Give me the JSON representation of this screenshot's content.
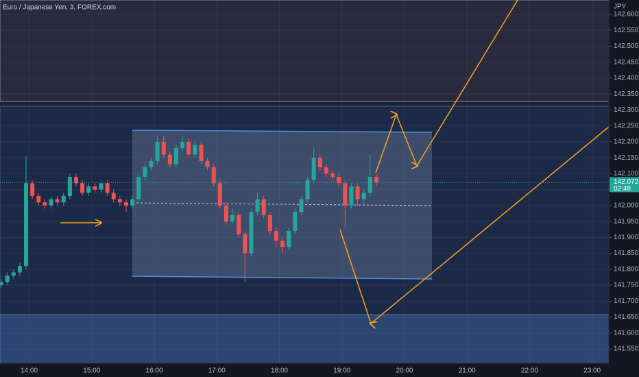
{
  "chart_data": {
    "type": "candlestick",
    "title": "Euro / Japanese Yen, 3, FOREX.com",
    "y_label": "JPY",
    "x": [
      "13:33",
      "13:39",
      "13:45",
      "13:51",
      "13:57",
      "14:03",
      "14:09",
      "14:15",
      "14:21",
      "14:27",
      "14:33",
      "14:39",
      "14:45",
      "14:51",
      "14:57",
      "15:03",
      "15:09",
      "15:15",
      "15:21",
      "15:27",
      "15:33",
      "15:39",
      "15:45",
      "15:51",
      "15:57",
      "16:03",
      "16:09",
      "16:15",
      "16:21",
      "16:27",
      "16:33",
      "16:39",
      "16:45",
      "16:51",
      "16:57",
      "17:03",
      "17:09",
      "17:15",
      "17:21",
      "17:27",
      "17:33",
      "17:39",
      "17:45",
      "17:51",
      "17:57",
      "18:03",
      "18:09",
      "18:15",
      "18:21",
      "18:27",
      "18:33",
      "18:39",
      "18:45",
      "18:51",
      "18:57",
      "19:03",
      "19:09",
      "19:15",
      "19:21",
      "19:27",
      "19:33"
    ],
    "open": [
      141.75,
      141.76,
      141.78,
      141.79,
      141.81,
      142.07,
      142.03,
      142.01,
      142.0,
      142.02,
      142.01,
      142.03,
      142.09,
      142.07,
      142.04,
      142.06,
      142.05,
      142.07,
      142.04,
      142.02,
      142.01,
      142.0,
      142.02,
      142.09,
      142.12,
      142.14,
      142.2,
      142.16,
      142.13,
      142.18,
      142.2,
      142.16,
      142.19,
      142.14,
      142.12,
      142.07,
      142.0,
      141.95,
      141.97,
      141.91,
      141.85,
      141.98,
      142.02,
      141.97,
      141.92,
      141.89,
      141.87,
      141.92,
      141.98,
      142.02,
      142.08,
      142.15,
      142.12,
      142.1,
      142.09,
      142.07,
      142.0,
      142.06,
      142.02,
      142.04,
      142.09
    ],
    "high": [
      141.77,
      141.79,
      141.8,
      141.82,
      142.155,
      142.08,
      142.04,
      142.02,
      142.03,
      142.03,
      142.04,
      142.1,
      142.1,
      142.08,
      142.07,
      142.07,
      142.08,
      142.08,
      142.05,
      142.03,
      142.02,
      142.03,
      142.1,
      142.13,
      142.15,
      142.22,
      142.22,
      142.17,
      142.19,
      142.22,
      142.21,
      142.2,
      142.2,
      142.15,
      142.13,
      142.08,
      142.01,
      141.99,
      141.98,
      141.92,
      141.99,
      142.04,
      142.03,
      141.98,
      141.93,
      141.9,
      141.93,
      141.99,
      142.03,
      142.09,
      142.18,
      142.16,
      142.13,
      142.11,
      142.1,
      142.08,
      142.07,
      142.07,
      142.05,
      142.16,
      142.1
    ],
    "low": [
      141.74,
      141.75,
      141.77,
      141.78,
      141.8,
      142.02,
      142.0,
      141.99,
      141.99,
      142.0,
      142.0,
      142.02,
      142.06,
      142.03,
      142.03,
      142.04,
      142.04,
      142.03,
      142.01,
      142.0,
      141.98,
      141.99,
      142.01,
      142.08,
      142.11,
      142.13,
      142.15,
      142.12,
      142.12,
      142.17,
      142.15,
      142.15,
      142.13,
      142.11,
      142.06,
      141.99,
      141.94,
      141.94,
      141.9,
      141.76,
      141.84,
      141.97,
      141.96,
      141.91,
      141.87,
      141.85,
      141.86,
      141.91,
      141.97,
      142.01,
      142.07,
      142.11,
      142.09,
      142.08,
      142.06,
      141.93,
      141.99,
      142.0,
      142.0,
      142.03,
      142.06
    ],
    "close": [
      141.76,
      141.78,
      141.79,
      141.81,
      142.07,
      142.03,
      142.01,
      142.0,
      142.02,
      142.01,
      142.03,
      142.09,
      142.07,
      142.04,
      142.06,
      142.05,
      142.07,
      142.04,
      142.02,
      142.01,
      142.0,
      142.02,
      142.09,
      142.12,
      142.14,
      142.2,
      142.16,
      142.13,
      142.18,
      142.2,
      142.16,
      142.19,
      142.14,
      142.12,
      142.07,
      142.0,
      141.95,
      141.97,
      141.91,
      141.85,
      141.98,
      142.02,
      141.97,
      141.92,
      141.89,
      141.87,
      141.92,
      141.98,
      142.02,
      142.08,
      142.15,
      142.12,
      142.1,
      142.09,
      142.07,
      142.0,
      142.06,
      142.02,
      142.04,
      142.09,
      142.072
    ],
    "up_color": "#26a69a",
    "down_color": "#ef5350",
    "last_price": 142.072,
    "countdown": "02:48",
    "xlim": [
      "13:32",
      "23:16"
    ],
    "xticks": [
      "14:00",
      "15:00",
      "16:00",
      "17:00",
      "18:00",
      "19:00",
      "20:00",
      "21:00",
      "22:00",
      "23:00"
    ],
    "ylim": [
      141.505,
      142.645
    ],
    "yticks": [
      {
        "value": 141.55,
        "label": "141.550"
      },
      {
        "value": 141.6,
        "label": "141.600"
      },
      {
        "value": 141.65,
        "label": "141.650"
      },
      {
        "value": 141.7,
        "label": "141.700"
      },
      {
        "value": 141.75,
        "label": "141.750"
      },
      {
        "value": 141.8,
        "label": "141.800"
      },
      {
        "value": 141.85,
        "label": "141.850"
      },
      {
        "value": 141.9,
        "label": "141.900"
      },
      {
        "value": 141.95,
        "label": "141.950"
      },
      {
        "value": 142,
        "label": "142.000"
      },
      {
        "value": 142.05,
        "label": "142.050"
      },
      {
        "value": 142.1,
        "label": "142.100"
      },
      {
        "value": 142.15,
        "label": "142.150"
      },
      {
        "value": 142.2,
        "label": "142.200"
      },
      {
        "value": 142.25,
        "label": "142.250"
      },
      {
        "value": 142.3,
        "label": "142.300"
      },
      {
        "value": 142.35,
        "label": "142.350"
      },
      {
        "value": 142.4,
        "label": "142.400"
      },
      {
        "value": 142.45,
        "label": "142.450"
      },
      {
        "value": 142.5,
        "label": "142.500"
      },
      {
        "value": 142.55,
        "label": "142.550"
      },
      {
        "value": 142.6,
        "label": "142.600"
      }
    ]
  }
}
